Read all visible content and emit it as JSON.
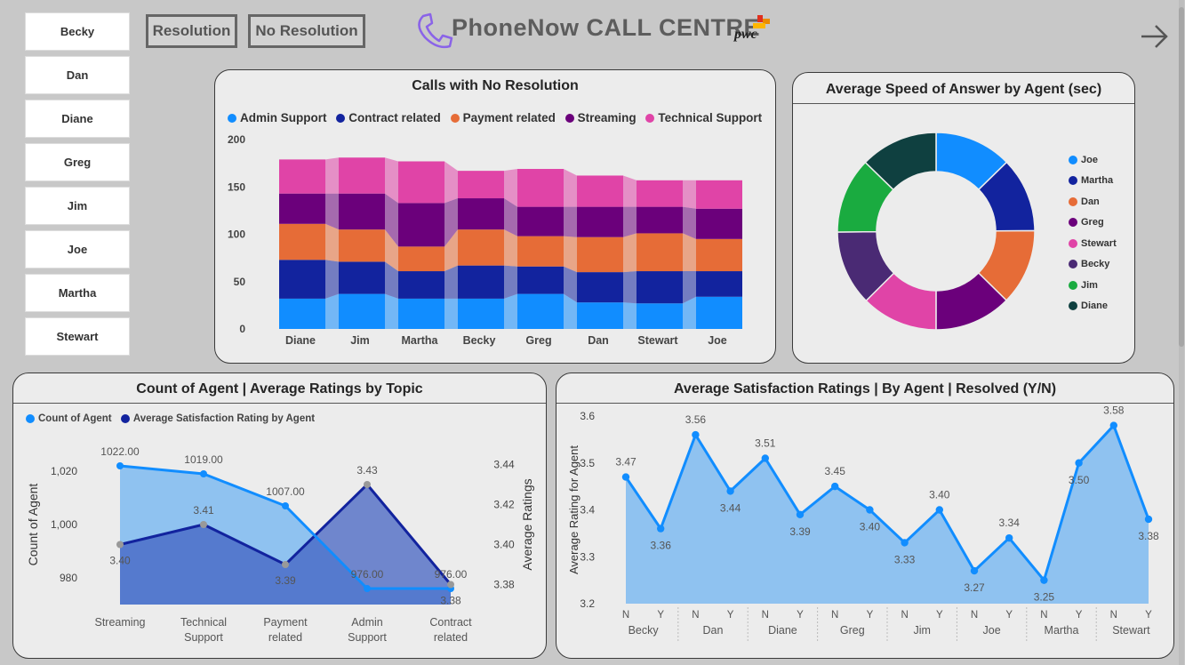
{
  "agents": [
    "Becky",
    "Dan",
    "Diane",
    "Greg",
    "Jim",
    "Joe",
    "Martha",
    "Stewart"
  ],
  "header": {
    "resolution_label": "Resolution",
    "no_resolution_label": "No Resolution",
    "title": "PhoneNow CALL CENTRE",
    "brand": "pwc"
  },
  "colors": {
    "admin": "#118dff",
    "contract": "#12239e",
    "payment": "#e66c37",
    "streaming": "#6b007b",
    "technical": "#e044a7",
    "stewart": "#e044a7",
    "becky": "#4a2a74",
    "jim": "#1aab40",
    "diane": "#0f4040",
    "area_light": "#8fc2f0",
    "area_dark": "#1e63c6",
    "rating_area": "#8a8fd6"
  },
  "no_resolution": {
    "title": "Calls with No Resolution",
    "chart_data": {
      "type": "area",
      "categories": [
        "Diane",
        "Jim",
        "Martha",
        "Becky",
        "Greg",
        "Dan",
        "Stewart",
        "Joe"
      ],
      "ylim": [
        0,
        200
      ],
      "yticks": [
        "0",
        "50",
        "100",
        "150",
        "200"
      ],
      "series": [
        {
          "name": "Admin Support",
          "color": "#118dff",
          "values": [
            32,
            37,
            32,
            32,
            37,
            28,
            27,
            34
          ]
        },
        {
          "name": "Contract related",
          "color": "#12239e",
          "values": [
            41,
            34,
            29,
            35,
            29,
            32,
            34,
            27
          ]
        },
        {
          "name": "Payment related",
          "color": "#e66c37",
          "values": [
            38,
            34,
            26,
            38,
            32,
            37,
            40,
            34
          ]
        },
        {
          "name": "Streaming",
          "color": "#6b007b",
          "values": [
            32,
            38,
            46,
            33,
            31,
            32,
            28,
            32
          ]
        },
        {
          "name": "Technical Support",
          "color": "#e044a7",
          "values": [
            36,
            38,
            44,
            29,
            40,
            33,
            28,
            30
          ]
        }
      ]
    }
  },
  "speed": {
    "title": "Average Speed of Answer by Agent (sec)",
    "chart_data": {
      "type": "pie",
      "labels": [
        "Joe",
        "Martha",
        "Dan",
        "Greg",
        "Stewart",
        "Becky",
        "Jim",
        "Diane"
      ],
      "values": [
        67.5,
        65.1,
        66.2,
        67.2,
        66.7,
        65.5,
        66.0,
        67.7
      ],
      "colors": [
        "#118dff",
        "#12239e",
        "#e66c37",
        "#6b007b",
        "#e044a7",
        "#4a2a74",
        "#1aab40",
        "#0f4040"
      ]
    }
  },
  "topic": {
    "title": "Count of Agent | Average Ratings by Topic",
    "chart_data": {
      "type": "area",
      "categories": [
        "Streaming",
        "Technical Support",
        "Payment related",
        "Admin Support",
        "Contract related"
      ],
      "category_lines": [
        [
          "Streaming"
        ],
        [
          "Technical",
          "Support"
        ],
        [
          "Payment",
          "related"
        ],
        [
          "Admin",
          "Support"
        ],
        [
          "Contract",
          "related"
        ]
      ],
      "series": [
        {
          "name": "Count of Agent",
          "color": "#118dff",
          "axis": "left",
          "values": [
            1022,
            1019,
            1007,
            976,
            976
          ],
          "labels": [
            "1022.00",
            "1019.00",
            "1007.00",
            "976.00",
            "976.00"
          ]
        },
        {
          "name": "Average Satisfaction Rating by Agent",
          "color": "#12239e",
          "axis": "right",
          "values": [
            3.4,
            3.41,
            3.39,
            3.43,
            3.38
          ],
          "labels": [
            "3.40",
            "3.41",
            "3.39",
            "3.43",
            "3.38"
          ]
        }
      ],
      "ylim_left": [
        970,
        1030
      ],
      "ylim_right": [
        3.37,
        3.45
      ],
      "yticks_left": [
        "980",
        "1,000",
        "1,020"
      ],
      "yticks_right": [
        "3.38",
        "3.40",
        "3.42",
        "3.44"
      ],
      "ylabel_left": "Count of Agent",
      "ylabel_right": "Average Ratings"
    }
  },
  "satisfaction": {
    "title": "Average Satisfaction Ratings | By Agent | Resolved (Y/N)",
    "chart_data": {
      "type": "area",
      "agents": [
        "Becky",
        "Dan",
        "Diane",
        "Greg",
        "Jim",
        "Joe",
        "Martha",
        "Stewart"
      ],
      "resolved": [
        "N",
        "Y"
      ],
      "values": [
        3.47,
        3.36,
        3.56,
        3.44,
        3.51,
        3.39,
        3.45,
        3.4,
        3.33,
        3.4,
        3.27,
        3.34,
        3.25,
        3.5,
        3.58,
        3.38
      ],
      "labels": [
        "3.47",
        "3.36",
        "3.56",
        "3.44",
        "3.51",
        "3.39",
        "3.45",
        "3.40",
        "3.33",
        "3.40",
        "3.27",
        "3.34",
        "3.25",
        "3.50",
        "3.58",
        "3.38"
      ],
      "ylim": [
        3.2,
        3.6
      ],
      "yticks": [
        "3.2",
        "3.3",
        "3.4",
        "3.5",
        "3.6"
      ],
      "ylabel": "Average Rating for Agent"
    }
  }
}
